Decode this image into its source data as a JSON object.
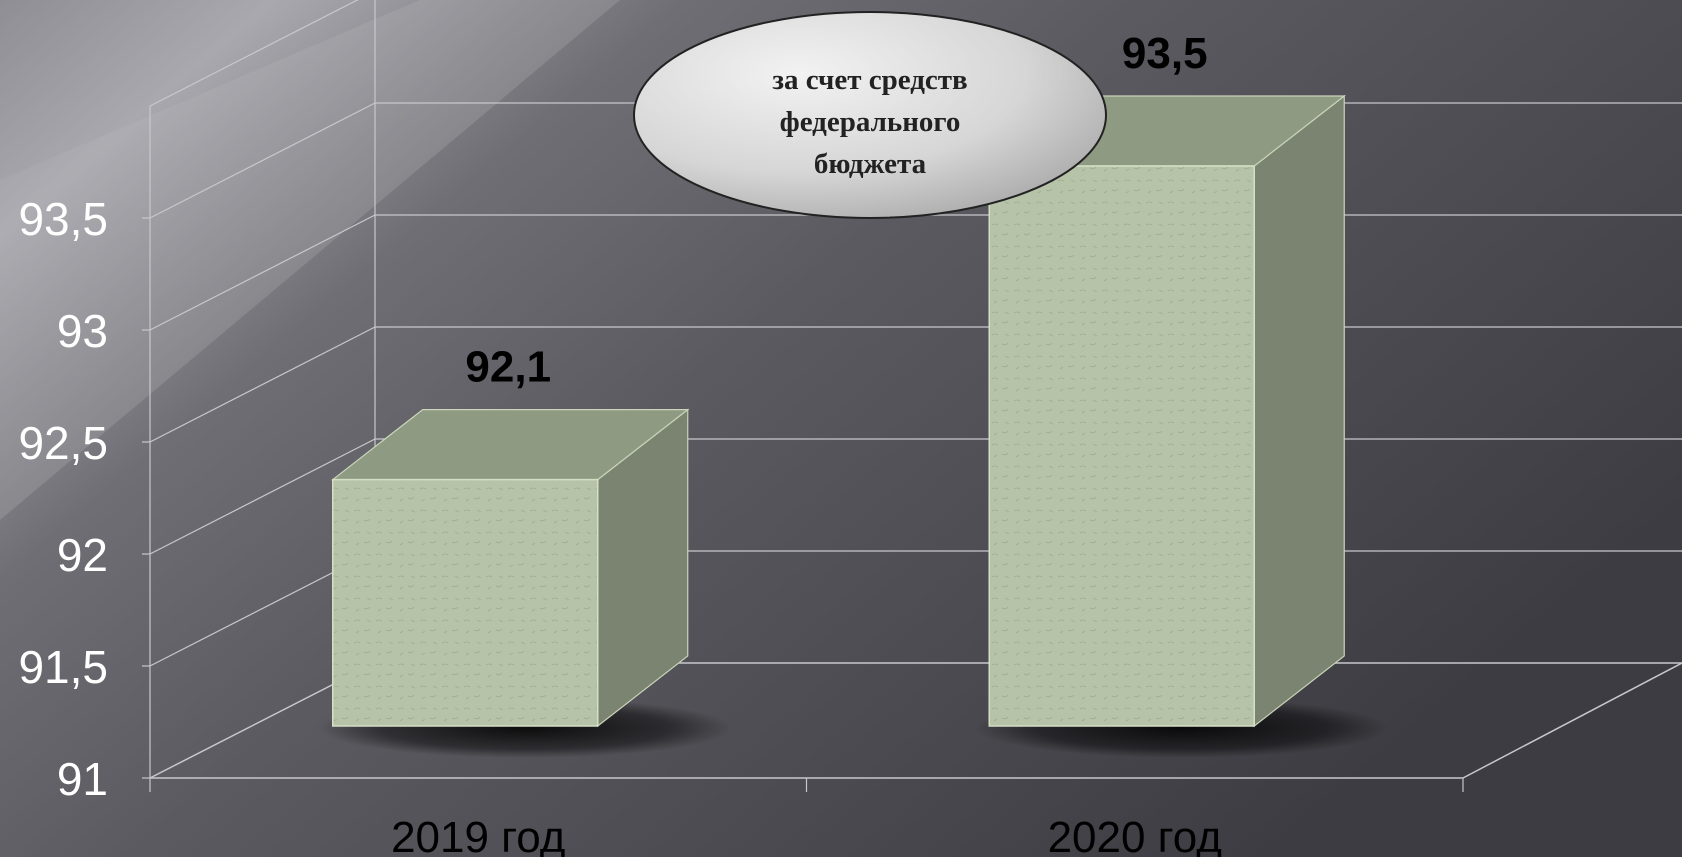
{
  "chart_data": {
    "type": "bar",
    "title": "",
    "xlabel": "",
    "ylabel": "",
    "categories": [
      "2019 год",
      "2020 год"
    ],
    "series": [
      {
        "values": [
          92.1,
          93.5
        ]
      }
    ],
    "data_labels": [
      "92,1",
      "93,5"
    ],
    "ylim": [
      91,
      93.5
    ],
    "y_ticks": [
      "91",
      "91,5",
      "92",
      "92,5",
      "93",
      "93,5"
    ],
    "grid": true,
    "three_d": true,
    "bar_color": "#b7c3a8",
    "callout": [
      "за счет средств",
      "федерального",
      "бюджета"
    ]
  },
  "colors": {
    "background_dark": "#3d3d43",
    "background_light": "#9a9aa0",
    "grid": "#c8c8cc",
    "bar_front": "#b7c3a8",
    "bar_top": "#8f9a83",
    "bar_side": "#7a8470",
    "axis_text": "#ffffff",
    "label_text": "#000000"
  }
}
